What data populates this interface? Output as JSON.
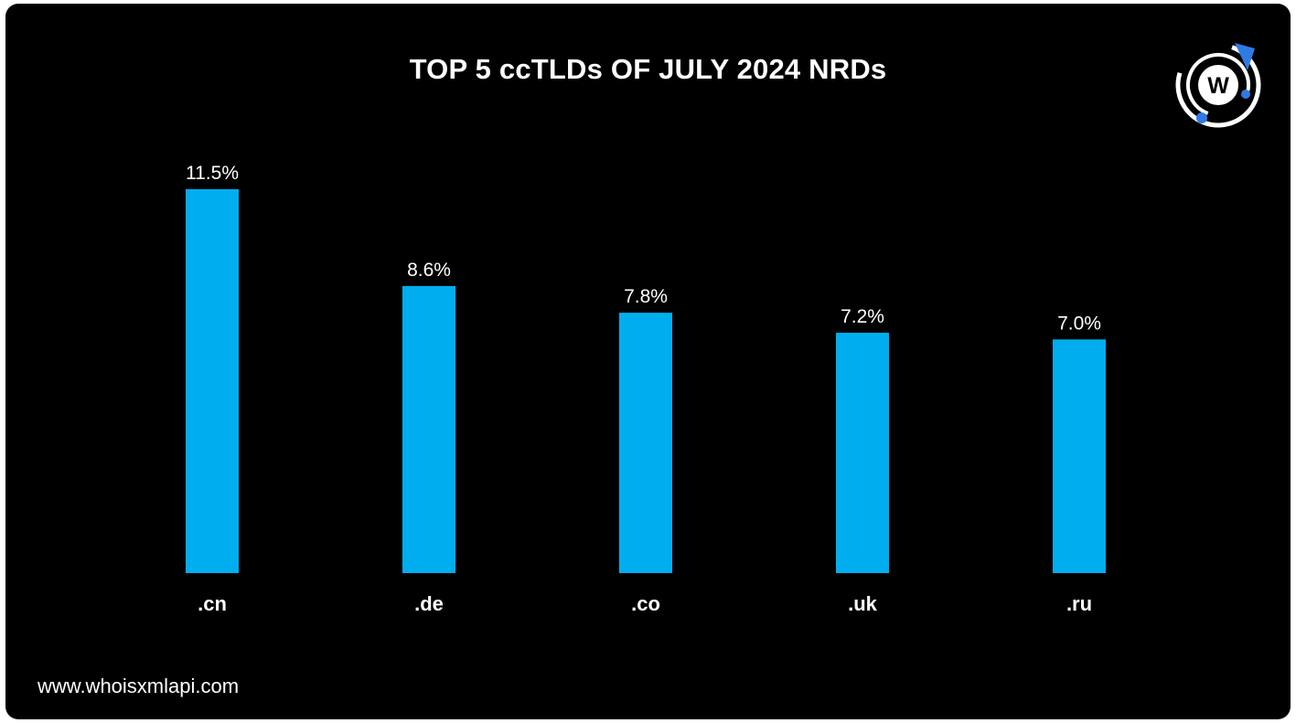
{
  "colors": {
    "background": "#000000",
    "bar": "#00AEEF",
    "text": "#FFFFFF",
    "logo_accent": "#2F7BE5"
  },
  "brand": {
    "logo_icon": "whoisxmlapi-logo-icon",
    "logo_letter": "W",
    "website": "www.whoisxmlapi.com"
  },
  "chart_data": {
    "type": "bar",
    "title": "TOP 5 ccTLDs OF JULY 2024 NRDs",
    "categories": [
      ".cn",
      ".de",
      ".co",
      ".uk",
      ".ru"
    ],
    "values": [
      11.5,
      8.6,
      7.8,
      7.2,
      7.0
    ],
    "value_labels": [
      "11.5%",
      "8.6%",
      "7.8%",
      "7.2%",
      "7.0%"
    ],
    "xlabel": "",
    "ylabel": "",
    "ylim": [
      0,
      11.5
    ],
    "grid": false,
    "legend": "none"
  }
}
